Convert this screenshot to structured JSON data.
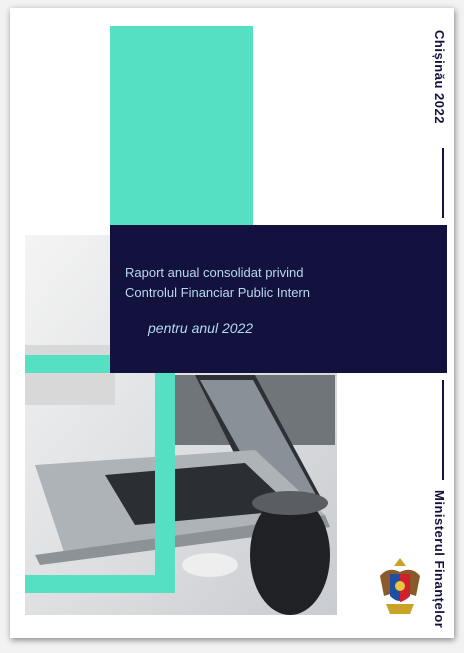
{
  "cover": {
    "title_lines": [
      "Raport anual consolidat privind",
      "Controlul Financiar Public Intern"
    ],
    "subtitle": "pentru anul 2022",
    "city_year": "Chișinău 2022",
    "ministry": "Ministerul Finanțelor"
  }
}
